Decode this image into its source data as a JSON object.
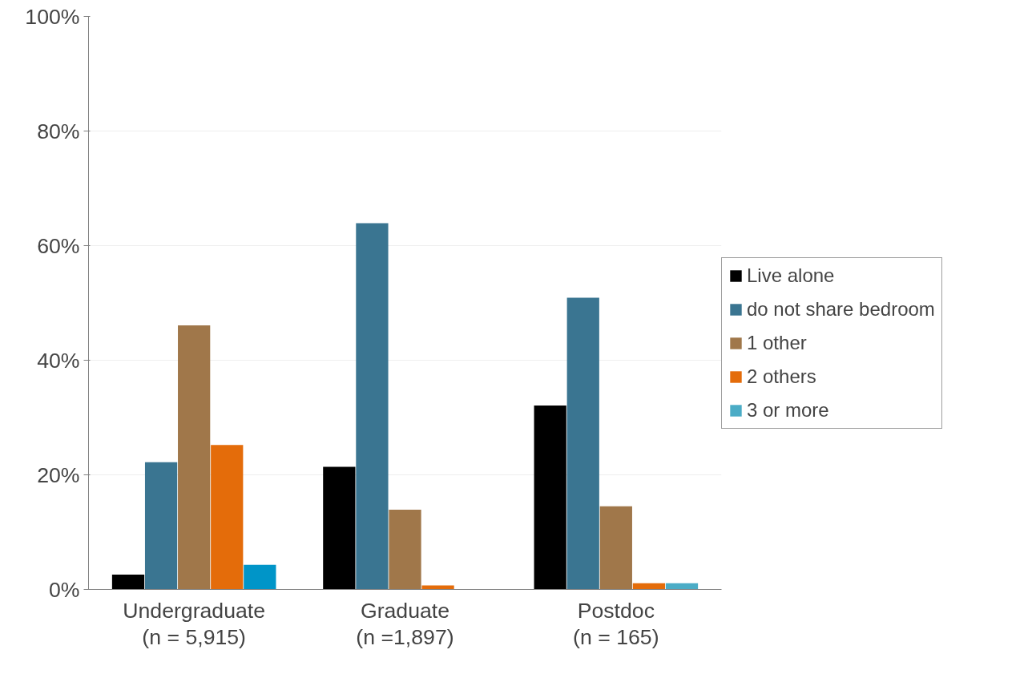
{
  "chart_data": {
    "type": "bar",
    "categories": [
      "Undergraduate\n(n = 5,915)",
      "Graduate\n(n =1,897)",
      "Postdoc\n(n = 165)"
    ],
    "series": [
      {
        "name": "Live alone",
        "color": "#000000",
        "values": [
          2.6,
          21.4,
          32.1
        ]
      },
      {
        "name": "do not share bedroom",
        "color": "#3a7591",
        "values": [
          22.2,
          63.9,
          50.9
        ]
      },
      {
        "name": "1 other",
        "color": "#a0774a",
        "values": [
          46.1,
          13.9,
          14.5
        ]
      },
      {
        "name": "2 others",
        "color": "#e46c0a",
        "values": [
          25.2,
          0.7,
          1.1
        ]
      },
      {
        "name": "3 or more",
        "color": "#4bacc6",
        "colors": [
          "#0095c8",
          "#4bacc6",
          "#4bacc6"
        ],
        "values": [
          4.3,
          null,
          1.1
        ]
      }
    ],
    "ylim": [
      0,
      100
    ],
    "yticks": [
      {
        "value": 0,
        "label": "0%"
      },
      {
        "value": 20,
        "label": "20%"
      },
      {
        "value": 40,
        "label": "40%"
      },
      {
        "value": 60,
        "label": "60%"
      },
      {
        "value": 80,
        "label": "80%"
      },
      {
        "value": 100,
        "label": "100%"
      }
    ],
    "grid": "y",
    "legend": "right"
  }
}
